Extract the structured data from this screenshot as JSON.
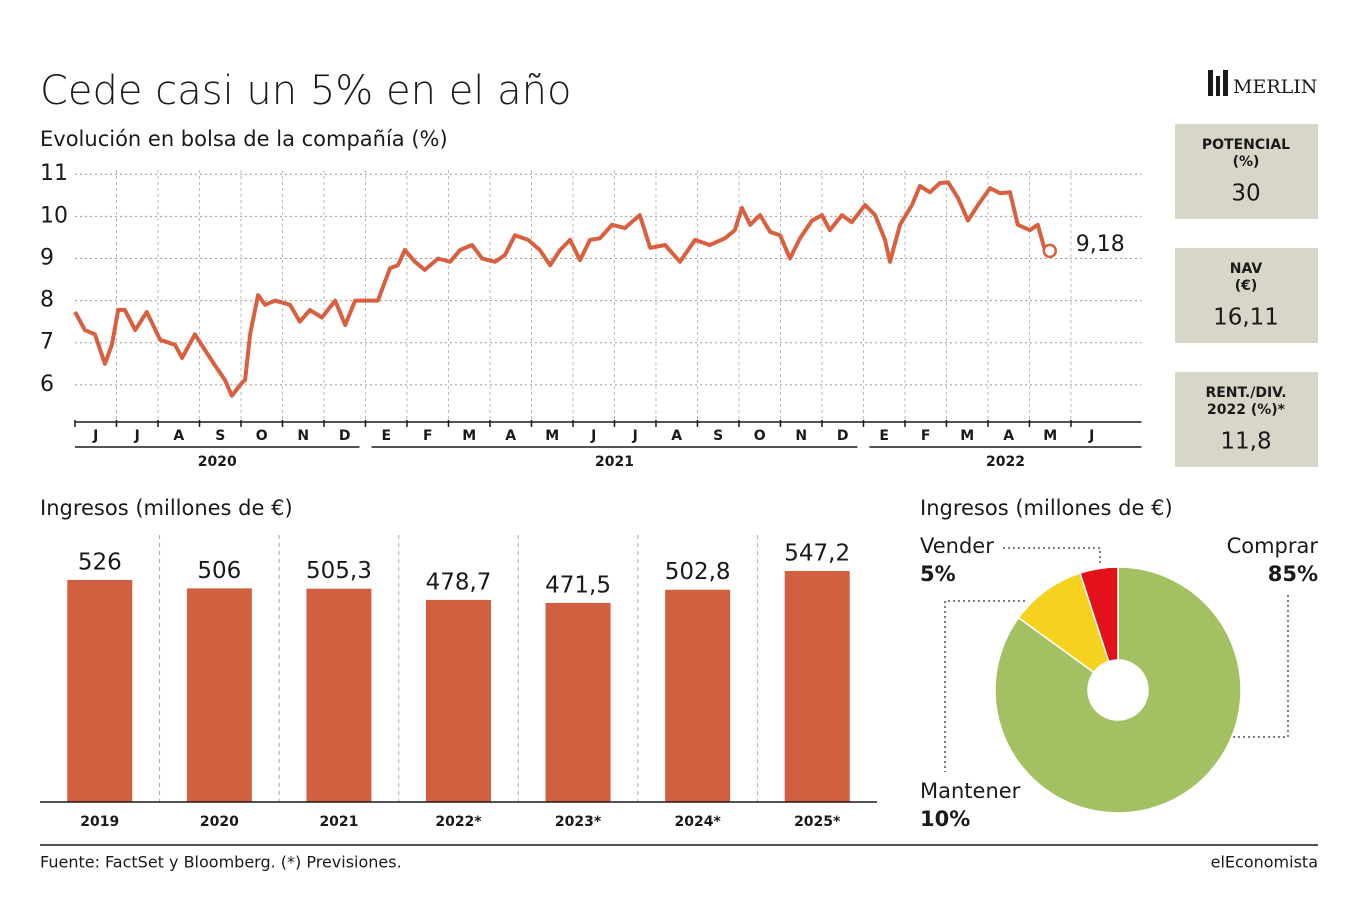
{
  "header": {
    "title": "Cede casi un 5% en el año",
    "logo": "MERLIN"
  },
  "indicators": [
    {
      "label": [
        "POTENCIAL",
        "(%)"
      ],
      "value": "30"
    },
    {
      "label": [
        "NAV",
        "(€)"
      ],
      "value": "16,11"
    },
    {
      "label": [
        "RENT./DIV.",
        "2022 (%)*"
      ],
      "value": "11,8"
    }
  ],
  "chart_data": [
    {
      "type": "line",
      "subtitle": "Evolución en bolsa de la compañía (%)",
      "x": [
        0,
        0.24,
        0.48,
        0.72,
        0.89,
        1.04,
        1.2,
        1.45,
        1.73,
        2.05,
        2.41,
        2.58,
        2.89,
        3.13,
        3.37,
        3.61,
        3.78,
        3.98,
        4.1,
        4.22,
        4.41,
        4.58,
        4.82,
        5.18,
        5.42,
        5.66,
        5.95,
        6.27,
        6.51,
        6.75,
        7.06,
        7.3,
        7.59,
        7.78,
        7.95,
        8.19,
        8.43,
        8.75,
        9.04,
        9.28,
        9.57,
        9.81,
        10.12,
        10.36,
        10.6,
        10.92,
        11.2,
        11.45,
        11.69,
        11.93,
        12.17,
        12.41,
        12.65,
        12.94,
        13.25,
        13.61,
        13.86,
        14.22,
        14.58,
        14.94,
        15.3,
        15.66,
        15.9,
        16.07,
        16.27,
        16.51,
        16.75,
        16.99,
        17.23,
        17.47,
        17.76,
        18,
        18.19,
        18.48,
        18.72,
        19.04,
        19.28,
        19.52,
        19.64,
        19.88,
        20.17,
        20.36,
        20.6,
        20.84,
        21.04,
        21.28,
        21.52,
        21.76,
        22.05,
        22.29,
        22.53,
        22.72,
        23.01,
        23.2,
        23.37,
        23.49
      ],
      "values": [
        7.73,
        7.3,
        7.2,
        6.5,
        6.95,
        7.78,
        7.78,
        7.3,
        7.73,
        7.07,
        6.95,
        6.64,
        7.2,
        6.83,
        6.47,
        6.12,
        5.74,
        6.0,
        6.12,
        7.2,
        8.13,
        7.9,
        8.0,
        7.9,
        7.5,
        7.78,
        7.6,
        8.0,
        7.42,
        8.0,
        8.0,
        8.0,
        8.77,
        8.84,
        9.2,
        8.92,
        8.73,
        9.0,
        8.92,
        9.2,
        9.32,
        9.0,
        8.92,
        9.08,
        9.55,
        9.44,
        9.2,
        8.84,
        9.2,
        9.44,
        8.96,
        9.44,
        9.48,
        9.8,
        9.72,
        10.03,
        9.25,
        9.32,
        8.92,
        9.44,
        9.32,
        9.48,
        9.67,
        10.2,
        9.8,
        10.03,
        9.63,
        9.55,
        9.0,
        9.48,
        9.9,
        10.03,
        9.67,
        10.03,
        9.86,
        10.27,
        10.03,
        9.44,
        8.92,
        9.8,
        10.27,
        10.72,
        10.57,
        10.79,
        10.81,
        10.43,
        9.9,
        10.27,
        10.67,
        10.55,
        10.57,
        9.8,
        9.67,
        9.8,
        9.2,
        9.18
      ],
      "end_label": "9,18",
      "color": "#d9603e",
      "xlim": [
        0,
        25.7
      ],
      "ylim": [
        5,
        11.1
      ],
      "yticks": [
        6,
        7,
        8,
        9,
        10,
        11
      ],
      "xticks": [
        {
          "value": 0,
          "label": "J"
        },
        {
          "value": 1,
          "label": "J"
        },
        {
          "value": 2,
          "label": "A"
        },
        {
          "value": 3,
          "label": "S"
        },
        {
          "value": 4,
          "label": "O"
        },
        {
          "value": 5,
          "label": "N"
        },
        {
          "value": 6,
          "label": "D"
        },
        {
          "value": 7,
          "label": "E"
        },
        {
          "value": 8,
          "label": "F"
        },
        {
          "value": 9,
          "label": "M"
        },
        {
          "value": 10,
          "label": "A"
        },
        {
          "value": 11,
          "label": "M"
        },
        {
          "value": 12,
          "label": "J"
        },
        {
          "value": 13,
          "label": "J"
        },
        {
          "value": 14,
          "label": "A"
        },
        {
          "value": 15,
          "label": "S"
        },
        {
          "value": 16,
          "label": "O"
        },
        {
          "value": 17,
          "label": "N"
        },
        {
          "value": 18,
          "label": "D"
        },
        {
          "value": 19,
          "label": "E"
        },
        {
          "value": 20,
          "label": "F"
        },
        {
          "value": 21,
          "label": "M"
        },
        {
          "value": 22,
          "label": "A"
        },
        {
          "value": 23,
          "label": "M"
        },
        {
          "value": 24,
          "label": "J"
        }
      ],
      "year_labels": [
        "2020",
        "2021",
        "2022"
      ],
      "grid": true
    },
    {
      "type": "bar",
      "subtitle": "Ingresos (millones de €)",
      "categories": [
        "2019",
        "2020",
        "2021",
        "2022*",
        "2023*",
        "2024*",
        "2025*"
      ],
      "values": [
        526,
        506,
        505.3,
        478.7,
        471.5,
        502.8,
        547.2
      ],
      "value_labels": [
        "526",
        "506",
        "505,3",
        "478,7",
        "471,5",
        "502,8",
        "547,2"
      ],
      "color": "#d0603f"
    },
    {
      "type": "pie",
      "subtitle": "Ingresos (millones de €)",
      "categories": [
        "Comprar",
        "Mantener",
        "Vender"
      ],
      "values": [
        85,
        10,
        5
      ],
      "value_labels": [
        "85%",
        "10%",
        "5%"
      ],
      "colors": [
        "#a3c163",
        "#f4d21f",
        "#e3111b"
      ]
    }
  ],
  "footer": {
    "source": "Fuente: FactSet y Bloomberg. (*) Previsiones.",
    "brand": "elEconomista"
  }
}
